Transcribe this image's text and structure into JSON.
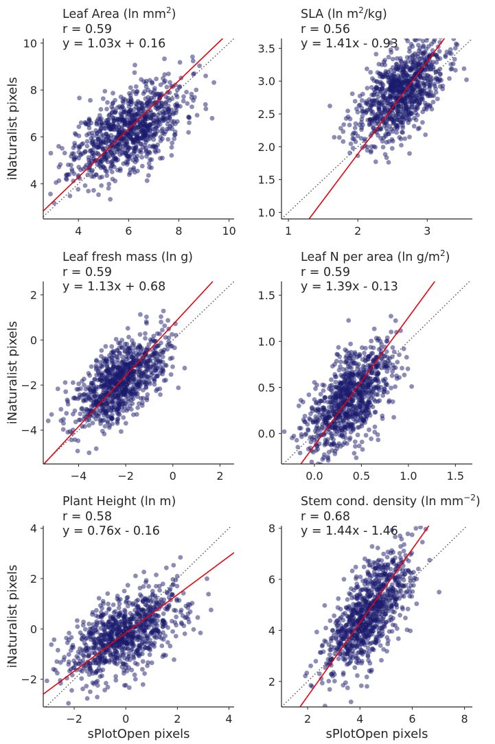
{
  "figure": {
    "shared_ylabel": "iNaturalist pixels",
    "shared_xlabel": "sPlotOpen pixels"
  },
  "colors": {
    "points": "#1a1a6e",
    "regression": "#e8000b",
    "identity": "#555555",
    "axis": "#262626"
  },
  "chart_data": [
    {
      "type": "scatter",
      "title": "Leaf Area (ln mm²)",
      "title_base": "Leaf Area (ln mm",
      "title_sup": "2",
      "title_tail": ")",
      "r_text": "r = 0.59",
      "eq_text": "y = 1.03x + 0.16",
      "r": 0.59,
      "slope": 1.03,
      "intercept": 0.16,
      "xlabel": "",
      "ylabel": "iNaturalist pixels",
      "xlim": [
        2.6,
        10.2
      ],
      "ylim": [
        2.5,
        10.2
      ],
      "xticks": [
        4,
        6,
        8,
        10
      ],
      "yticks": [
        4,
        6,
        8,
        10
      ],
      "x_center": 6.0,
      "y_center": 6.3,
      "x_sd": 1.1,
      "y_sd": 1.05,
      "n": 900,
      "seed": 11,
      "identity_line": true,
      "grid": false
    },
    {
      "type": "scatter",
      "title": "SLA (ln m²/kg)",
      "title_base": "SLA (ln m",
      "title_sup": "2",
      "title_tail": "/kg)",
      "r_text": "r = 0.56",
      "eq_text": "y = 1.41x - 0.93",
      "r": 0.56,
      "slope": 1.41,
      "intercept": -0.93,
      "xlabel": "",
      "ylabel": "",
      "xlim": [
        0.9,
        3.65
      ],
      "ylim": [
        0.9,
        3.65
      ],
      "xticks": [
        1,
        2,
        3
      ],
      "yticks": [
        1.0,
        1.5,
        2.0,
        2.5,
        3.0,
        3.5
      ],
      "x_center": 2.6,
      "y_center": 2.8,
      "x_sd": 0.32,
      "y_sd": 0.38,
      "n": 900,
      "seed": 23,
      "identity_line": true,
      "grid": false
    },
    {
      "type": "scatter",
      "title": "Leaf fresh mass (ln g)",
      "title_base": "Leaf fresh mass (ln g)",
      "title_sup": "",
      "title_tail": "",
      "r_text": "r = 0.59",
      "eq_text": "y = 1.13x + 0.68",
      "r": 0.59,
      "slope": 1.13,
      "intercept": 0.68,
      "xlabel": "",
      "ylabel": "iNaturalist pixels",
      "xlim": [
        -5.5,
        2.6
      ],
      "ylim": [
        -5.5,
        2.6
      ],
      "xticks": [
        -4,
        -2,
        0,
        2
      ],
      "yticks": [
        -4,
        -2,
        0,
        2
      ],
      "x_center": -2.2,
      "y_center": -1.8,
      "x_sd": 0.95,
      "y_sd": 1.0,
      "n": 900,
      "seed": 37,
      "identity_line": true,
      "grid": false
    },
    {
      "type": "scatter",
      "title": "Leaf N per area (ln g/m²)",
      "title_base": "Leaf N per area (ln g/m",
      "title_sup": "2",
      "title_tail": ")",
      "r_text": "r = 0.59",
      "eq_text": "y = 1.39x - 0.13",
      "r": 0.59,
      "slope": 1.39,
      "intercept": -0.13,
      "xlabel": "",
      "ylabel": "",
      "xlim": [
        -0.35,
        1.68
      ],
      "ylim": [
        -0.33,
        1.65
      ],
      "xticks": [
        0.0,
        0.5,
        1.0,
        1.5
      ],
      "yticks": [
        0.0,
        0.5,
        1.0,
        1.5
      ],
      "x_center": 0.38,
      "y_center": 0.38,
      "x_sd": 0.23,
      "y_sd": 0.3,
      "n": 900,
      "seed": 41,
      "identity_line": true,
      "grid": false
    },
    {
      "type": "scatter",
      "title": "Plant Height (ln m)",
      "title_base": "Plant Height (ln m)",
      "title_sup": "",
      "title_tail": "",
      "r_text": "r = 0.58",
      "eq_text": "y = 0.76x - 0.16",
      "r": 0.58,
      "slope": 0.76,
      "intercept": -0.16,
      "xlabel": "sPlotOpen pixels",
      "ylabel": "iNaturalist pixels",
      "xlim": [
        -3.2,
        4.2
      ],
      "ylim": [
        -3.1,
        4.1
      ],
      "xticks": [
        -2,
        0,
        2,
        4
      ],
      "yticks": [
        -2,
        0,
        2,
        4
      ],
      "x_center": 0.0,
      "y_center": -0.2,
      "x_sd": 1.15,
      "y_sd": 0.95,
      "n": 900,
      "seed": 53,
      "identity_line": true,
      "grid": false
    },
    {
      "type": "scatter",
      "title": "Stem cond. density (ln mm⁻²)",
      "title_base": "Stem cond. density (ln mm",
      "title_sup": "−2",
      "title_tail": ")",
      "r_text": "r = 0.68",
      "eq_text": "y = 1.44x - 1.46",
      "r": 0.68,
      "slope": 1.44,
      "intercept": -1.46,
      "xlabel": "sPlotOpen pixels",
      "ylabel": "",
      "xlim": [
        1.0,
        8.3
      ],
      "ylim": [
        1.0,
        8.1
      ],
      "xticks": [
        2,
        4,
        6,
        8
      ],
      "yticks": [
        2,
        4,
        6,
        8
      ],
      "x_center": 4.3,
      "y_center": 4.6,
      "x_sd": 0.8,
      "y_sd": 1.2,
      "n": 900,
      "seed": 67,
      "identity_line": true,
      "grid": false
    }
  ]
}
